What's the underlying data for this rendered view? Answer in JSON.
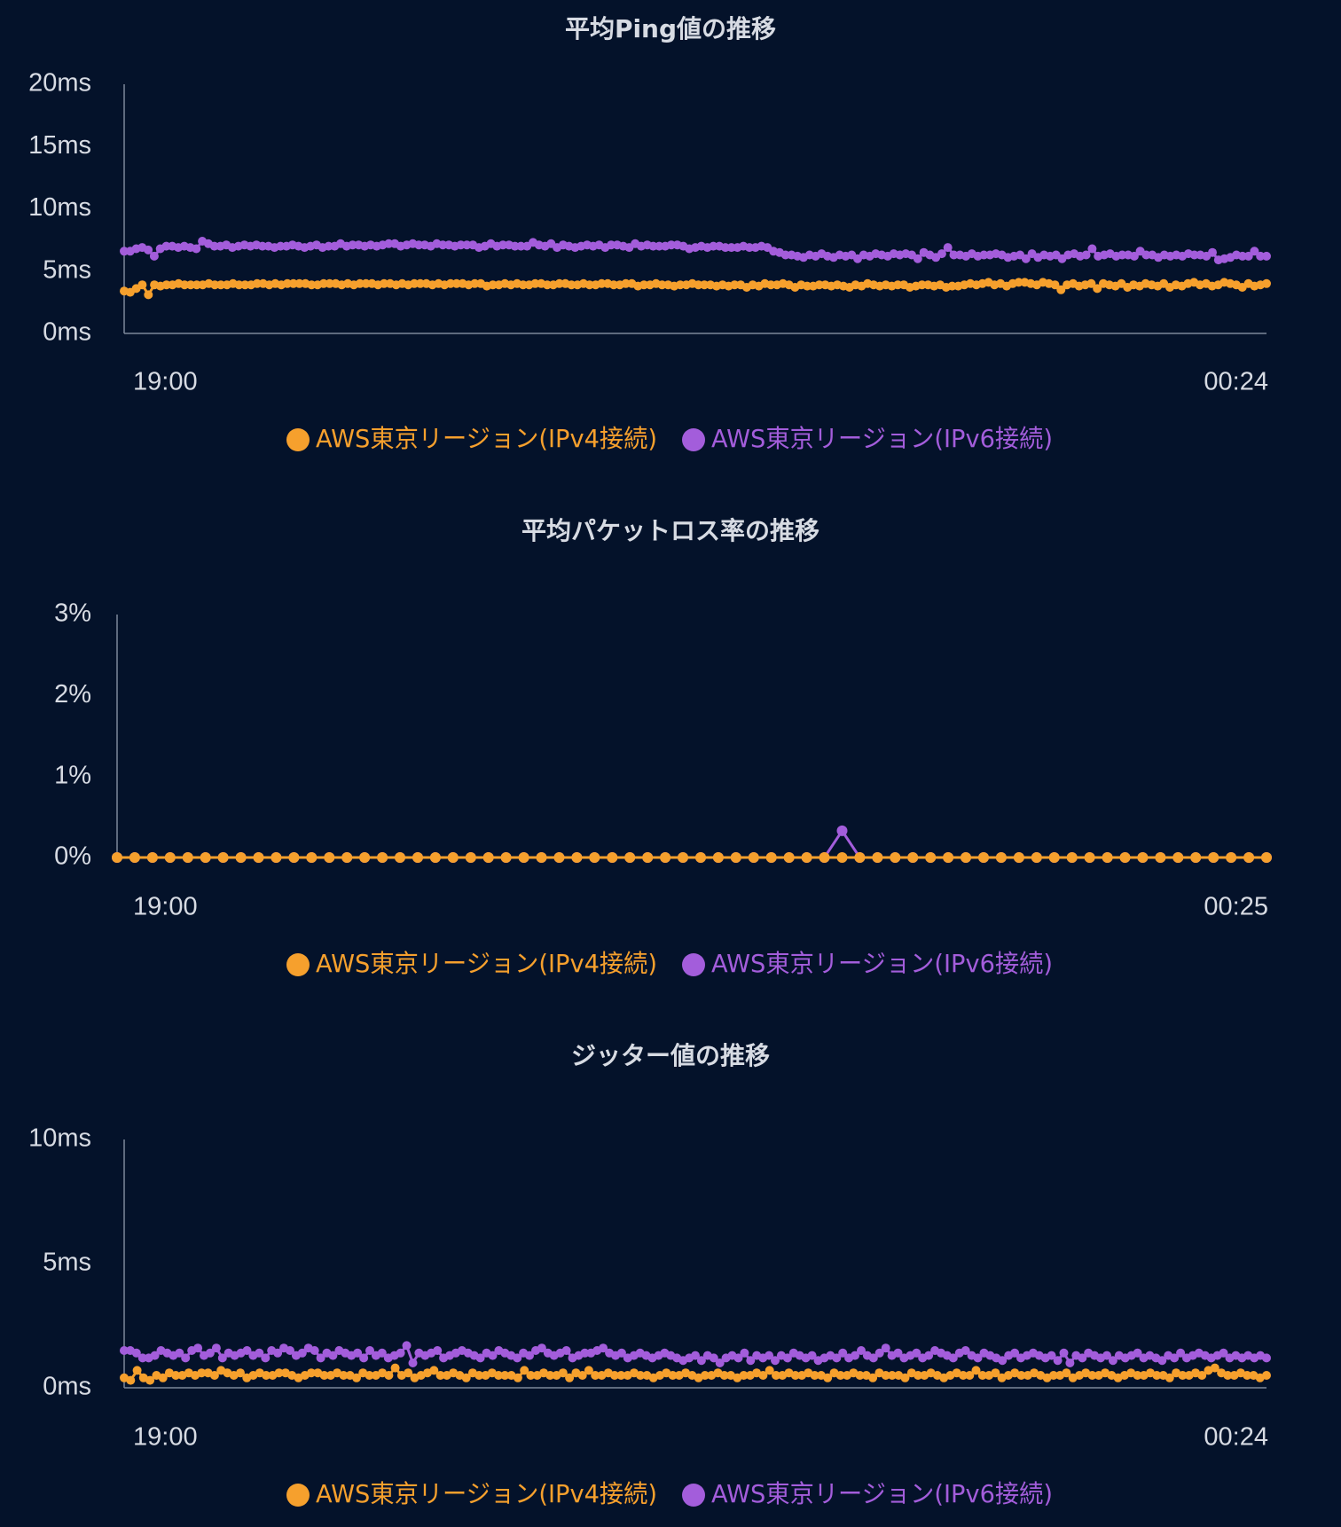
{
  "colors": {
    "background": "#04122a",
    "text": "#d7dbe3",
    "axis": "#7d8799",
    "ipv4": "#f6a02d",
    "ipv6": "#a35ddb"
  },
  "chart_data": [
    {
      "type": "line",
      "title": "平均Ping値の推移",
      "xlabel": "",
      "ylabel": "",
      "y_unit": "ms",
      "ylim": [
        0,
        20
      ],
      "y_ticks": [
        0,
        5,
        10,
        15,
        20
      ],
      "y_tick_labels": [
        "0ms",
        "5ms",
        "10ms",
        "15ms",
        "20ms"
      ],
      "x_tick_labels": [
        "19:00",
        "00:24"
      ],
      "x_range": [
        "19:00",
        "00:24"
      ],
      "grid": false,
      "legend": "bottom",
      "series": [
        {
          "name": "AWS東京リージョン(IPv4接続)",
          "color": "#f6a02d",
          "values": [
            3.4,
            3.3,
            3.6,
            3.9,
            3.1,
            3.9,
            3.8,
            3.9,
            3.9,
            4.0,
            3.9,
            3.9,
            3.9,
            3.9,
            4.0,
            3.9,
            3.9,
            3.9,
            4.0,
            3.9,
            3.9,
            3.9,
            4.0,
            4.0,
            3.9,
            4.0,
            3.9,
            4.0,
            4.0,
            4.0,
            4.0,
            3.9,
            3.9,
            4.0,
            4.0,
            4.0,
            3.9,
            4.0,
            3.9,
            4.0,
            4.0,
            4.0,
            3.9,
            4.0,
            4.0,
            3.9,
            4.0,
            3.9,
            4.0,
            4.0,
            4.0,
            3.9,
            4.0,
            3.9,
            4.0,
            4.0,
            4.0,
            3.9,
            4.0,
            4.0,
            3.8,
            3.9,
            3.9,
            4.0,
            3.9,
            4.0,
            3.9,
            3.9,
            4.0,
            4.0,
            3.9,
            3.9,
            4.0,
            4.0,
            3.9,
            3.9,
            4.0,
            3.9,
            3.9,
            4.0,
            4.0,
            3.9,
            3.9,
            4.0,
            4.0,
            3.8,
            3.9,
            3.9,
            4.0,
            3.9,
            3.9,
            3.8,
            3.9,
            3.9,
            4.0,
            3.9,
            3.9,
            3.9,
            3.8,
            3.9,
            3.8,
            3.9,
            3.9,
            3.7,
            3.9,
            3.8,
            4.0,
            3.9,
            3.9,
            4.0,
            3.9,
            3.7,
            3.9,
            3.8,
            3.8,
            3.9,
            3.9,
            3.8,
            3.9,
            3.8,
            3.7,
            3.9,
            3.8,
            4.0,
            3.9,
            3.8,
            3.9,
            3.8,
            3.9,
            3.9,
            3.7,
            3.8,
            3.9,
            3.9,
            3.8,
            3.9,
            3.7,
            3.8,
            3.8,
            3.9,
            4.0,
            3.9,
            4.0,
            4.1,
            3.9,
            4.0,
            3.8,
            4.0,
            4.1,
            4.1,
            4.0,
            3.9,
            4.1,
            4.0,
            3.9,
            3.5,
            3.9,
            4.0,
            3.8,
            3.9,
            4.0,
            3.6,
            4.0,
            3.9,
            3.8,
            4.0,
            3.7,
            3.9,
            3.8,
            4.0,
            3.9,
            3.8,
            4.0,
            3.7,
            3.9,
            3.8,
            4.0,
            4.1,
            3.9,
            4.0,
            3.8,
            3.9,
            4.1,
            4.0,
            3.9,
            3.7,
            4.0,
            3.8,
            3.9,
            4.0
          ]
        },
        {
          "name": "AWS東京リージョン(IPv6接続)",
          "color": "#a35ddb",
          "values": [
            6.6,
            6.6,
            6.8,
            6.9,
            6.7,
            6.2,
            6.8,
            7.0,
            7.0,
            6.9,
            7.0,
            6.9,
            6.8,
            7.4,
            7.2,
            7.0,
            7.0,
            7.1,
            6.9,
            7.0,
            7.1,
            7.0,
            7.1,
            7.0,
            7.0,
            6.9,
            7.0,
            7.0,
            7.1,
            7.0,
            6.9,
            7.0,
            7.1,
            6.9,
            7.0,
            7.0,
            7.2,
            7.0,
            7.1,
            7.1,
            7.0,
            7.1,
            7.0,
            7.1,
            7.2,
            7.2,
            7.0,
            7.1,
            7.2,
            7.1,
            7.1,
            7.0,
            7.2,
            7.1,
            7.1,
            7.0,
            7.1,
            7.1,
            7.1,
            6.9,
            7.0,
            7.2,
            7.0,
            7.1,
            7.1,
            7.0,
            7.0,
            7.0,
            7.3,
            7.1,
            7.0,
            7.2,
            6.9,
            7.1,
            7.0,
            6.9,
            7.0,
            7.1,
            7.0,
            7.1,
            6.9,
            7.1,
            7.1,
            7.0,
            6.9,
            7.2,
            7.0,
            7.1,
            7.0,
            7.0,
            7.0,
            7.1,
            7.1,
            7.0,
            6.8,
            6.9,
            7.0,
            6.9,
            7.0,
            7.0,
            6.9,
            6.9,
            6.9,
            7.0,
            6.9,
            6.9,
            7.0,
            6.9,
            6.6,
            6.5,
            6.3,
            6.3,
            6.2,
            6.1,
            6.3,
            6.2,
            6.4,
            6.2,
            6.1,
            6.3,
            6.2,
            6.3,
            6.0,
            6.3,
            6.2,
            6.4,
            6.3,
            6.2,
            6.4,
            6.3,
            6.4,
            6.3,
            6.0,
            6.5,
            6.3,
            6.1,
            6.4,
            6.9,
            6.3,
            6.3,
            6.2,
            6.4,
            6.2,
            6.3,
            6.3,
            6.4,
            6.3,
            6.1,
            6.2,
            6.3,
            6.0,
            6.4,
            6.1,
            6.3,
            6.2,
            6.3,
            6.0,
            6.3,
            6.4,
            6.2,
            6.3,
            6.8,
            6.2,
            6.3,
            6.4,
            6.2,
            6.3,
            6.3,
            6.2,
            6.6,
            6.3,
            6.3,
            6.1,
            6.3,
            6.2,
            6.3,
            6.2,
            6.4,
            6.3,
            6.3,
            6.2,
            6.5,
            5.9,
            6.0,
            6.1,
            6.3,
            6.2,
            6.2,
            6.6,
            6.2,
            6.2
          ]
        }
      ]
    },
    {
      "type": "line",
      "title": "平均パケットロス率の推移",
      "xlabel": "",
      "ylabel": "",
      "y_unit": "%",
      "ylim": [
        0,
        3
      ],
      "y_ticks": [
        0,
        1,
        2,
        3
      ],
      "y_tick_labels": [
        "0%",
        "1%",
        "2%",
        "3%"
      ],
      "x_tick_labels": [
        "19:00",
        "00:25"
      ],
      "x_range": [
        "19:00",
        "00:25"
      ],
      "grid": false,
      "legend": "bottom",
      "series": [
        {
          "name": "AWS東京リージョン(IPv4接続)",
          "color": "#f6a02d",
          "values": [
            0,
            0,
            0,
            0,
            0,
            0,
            0,
            0,
            0,
            0,
            0,
            0,
            0,
            0,
            0,
            0,
            0,
            0,
            0,
            0,
            0,
            0,
            0,
            0,
            0,
            0,
            0,
            0,
            0,
            0,
            0,
            0,
            0,
            0,
            0,
            0,
            0,
            0,
            0,
            0,
            0,
            0,
            0,
            0,
            0,
            0,
            0,
            0,
            0,
            0,
            0,
            0,
            0,
            0,
            0,
            0,
            0,
            0,
            0,
            0,
            0,
            0,
            0,
            0,
            0,
            0
          ]
        },
        {
          "name": "AWS東京リージョン(IPv6接続)",
          "color": "#a35ddb",
          "values": [
            0,
            0,
            0,
            0,
            0,
            0,
            0,
            0,
            0,
            0,
            0,
            0,
            0,
            0,
            0,
            0,
            0,
            0,
            0,
            0,
            0,
            0,
            0,
            0,
            0,
            0,
            0,
            0,
            0,
            0,
            0,
            0,
            0,
            0,
            0,
            0,
            0,
            0,
            0,
            0,
            0,
            0.33,
            0,
            0,
            0,
            0,
            0,
            0,
            0,
            0,
            0,
            0,
            0,
            0,
            0,
            0,
            0,
            0,
            0,
            0,
            0,
            0,
            0,
            0,
            0,
            0
          ]
        }
      ]
    },
    {
      "type": "line",
      "title": "ジッター値の推移",
      "xlabel": "",
      "ylabel": "",
      "y_unit": "ms",
      "ylim": [
        0,
        10
      ],
      "y_ticks": [
        0,
        5,
        10
      ],
      "y_tick_labels": [
        "0ms",
        "5ms",
        "10ms"
      ],
      "x_tick_labels": [
        "19:00",
        "00:24"
      ],
      "x_range": [
        "19:00",
        "00:24"
      ],
      "grid": false,
      "legend": "bottom",
      "series": [
        {
          "name": "AWS東京リージョン(IPv4接続)",
          "color": "#f6a02d",
          "values": [
            0.4,
            0.3,
            0.7,
            0.4,
            0.3,
            0.5,
            0.4,
            0.6,
            0.5,
            0.5,
            0.6,
            0.5,
            0.6,
            0.6,
            0.5,
            0.7,
            0.6,
            0.5,
            0.6,
            0.4,
            0.5,
            0.6,
            0.5,
            0.5,
            0.6,
            0.6,
            0.5,
            0.4,
            0.5,
            0.6,
            0.6,
            0.5,
            0.5,
            0.6,
            0.5,
            0.5,
            0.4,
            0.6,
            0.5,
            0.5,
            0.6,
            0.5,
            0.8,
            0.5,
            0.6,
            0.4,
            0.5,
            0.6,
            0.7,
            0.5,
            0.5,
            0.6,
            0.5,
            0.4,
            0.6,
            0.5,
            0.5,
            0.6,
            0.5,
            0.5,
            0.5,
            0.4,
            0.7,
            0.5,
            0.5,
            0.6,
            0.5,
            0.5,
            0.6,
            0.4,
            0.6,
            0.5,
            0.7,
            0.5,
            0.5,
            0.6,
            0.5,
            0.5,
            0.5,
            0.6,
            0.5,
            0.5,
            0.4,
            0.5,
            0.6,
            0.5,
            0.5,
            0.6,
            0.5,
            0.4,
            0.5,
            0.5,
            0.6,
            0.5,
            0.5,
            0.4,
            0.5,
            0.5,
            0.6,
            0.5,
            0.7,
            0.5,
            0.5,
            0.6,
            0.5,
            0.5,
            0.6,
            0.5,
            0.5,
            0.4,
            0.6,
            0.5,
            0.5,
            0.6,
            0.5,
            0.5,
            0.4,
            0.6,
            0.5,
            0.5,
            0.5,
            0.4,
            0.6,
            0.5,
            0.5,
            0.6,
            0.5,
            0.4,
            0.5,
            0.6,
            0.5,
            0.5,
            0.7,
            0.5,
            0.5,
            0.6,
            0.4,
            0.5,
            0.6,
            0.5,
            0.5,
            0.6,
            0.5,
            0.4,
            0.5,
            0.5,
            0.6,
            0.4,
            0.5,
            0.6,
            0.5,
            0.5,
            0.6,
            0.5,
            0.4,
            0.5,
            0.6,
            0.5,
            0.5,
            0.6,
            0.5,
            0.5,
            0.4,
            0.6,
            0.5,
            0.5,
            0.6,
            0.5,
            0.7,
            0.8,
            0.6,
            0.5,
            0.5,
            0.6,
            0.5,
            0.5,
            0.4,
            0.5
          ]
        },
        {
          "name": "AWS東京リージョン(IPv6接続)",
          "color": "#a35ddb",
          "values": [
            1.5,
            1.5,
            1.4,
            1.2,
            1.2,
            1.3,
            1.5,
            1.4,
            1.3,
            1.4,
            1.2,
            1.5,
            1.6,
            1.3,
            1.4,
            1.6,
            1.2,
            1.4,
            1.3,
            1.4,
            1.5,
            1.3,
            1.4,
            1.2,
            1.5,
            1.4,
            1.6,
            1.5,
            1.3,
            1.4,
            1.6,
            1.5,
            1.2,
            1.4,
            1.3,
            1.5,
            1.4,
            1.3,
            1.4,
            1.2,
            1.5,
            1.3,
            1.4,
            1.2,
            1.3,
            1.4,
            1.7,
            1.0,
            1.4,
            1.3,
            1.4,
            1.5,
            1.2,
            1.3,
            1.4,
            1.5,
            1.4,
            1.3,
            1.2,
            1.4,
            1.3,
            1.5,
            1.4,
            1.3,
            1.2,
            1.4,
            1.3,
            1.5,
            1.6,
            1.4,
            1.3,
            1.4,
            1.5,
            1.2,
            1.3,
            1.4,
            1.4,
            1.5,
            1.6,
            1.4,
            1.3,
            1.4,
            1.2,
            1.3,
            1.4,
            1.3,
            1.2,
            1.3,
            1.4,
            1.3,
            1.2,
            1.1,
            1.2,
            1.3,
            1.1,
            1.3,
            1.2,
            1.0,
            1.2,
            1.3,
            1.2,
            1.4,
            1.1,
            1.3,
            1.2,
            1.3,
            1.1,
            1.3,
            1.2,
            1.4,
            1.3,
            1.2,
            1.3,
            1.1,
            1.2,
            1.3,
            1.2,
            1.4,
            1.2,
            1.3,
            1.5,
            1.3,
            1.2,
            1.4,
            1.6,
            1.3,
            1.4,
            1.2,
            1.3,
            1.4,
            1.2,
            1.3,
            1.5,
            1.4,
            1.3,
            1.2,
            1.4,
            1.5,
            1.3,
            1.2,
            1.4,
            1.3,
            1.2,
            1.1,
            1.3,
            1.4,
            1.2,
            1.3,
            1.4,
            1.3,
            1.2,
            1.3,
            1.1,
            1.4,
            1.0,
            1.3,
            1.2,
            1.4,
            1.3,
            1.2,
            1.3,
            1.1,
            1.3,
            1.2,
            1.3,
            1.4,
            1.2,
            1.3,
            1.2,
            1.1,
            1.3,
            1.2,
            1.4,
            1.2,
            1.3,
            1.4,
            1.3,
            1.2,
            1.3,
            1.4,
            1.2,
            1.3,
            1.2,
            1.3,
            1.2,
            1.3,
            1.2
          ]
        }
      ]
    }
  ]
}
